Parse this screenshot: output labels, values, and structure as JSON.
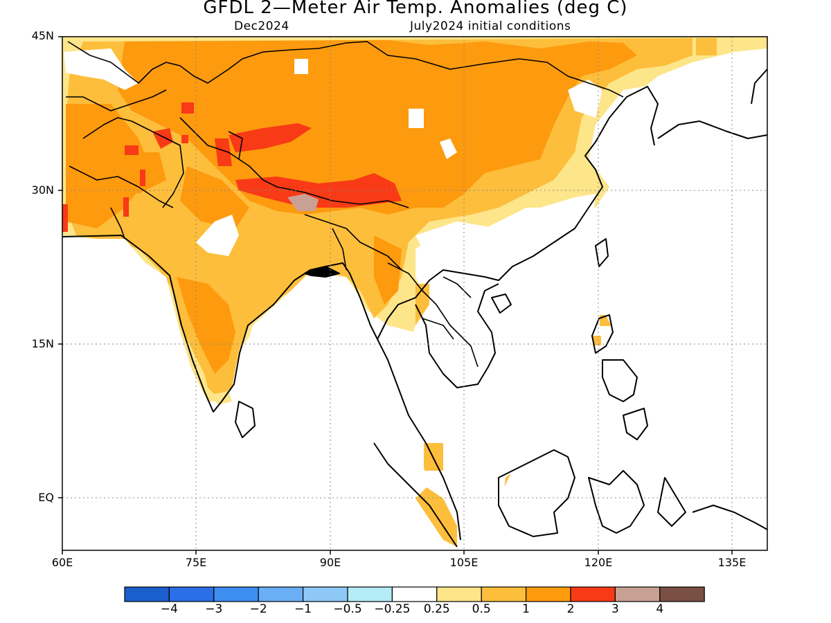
{
  "title": "GFDL 2—Meter Air Temp. Anomalies (deg C)",
  "subtitle_left": "Dec2024",
  "subtitle_right": "July2024 initial conditions",
  "lat_labels": [
    "45N",
    "30N",
    "15N",
    "EQ"
  ],
  "lon_labels": [
    "60E",
    "75E",
    "90E",
    "105E",
    "120E",
    "135E"
  ],
  "colorbar": {
    "colors": [
      "#1a5fcc",
      "#2a6fe6",
      "#3d8ef0",
      "#6aaef5",
      "#8ec8f7",
      "#b3ecf7",
      "#ffffff",
      "#fde58a",
      "#fdbe3c",
      "#fd9a0e",
      "#f83a16",
      "#c9a094",
      "#7a5044"
    ],
    "labels": [
      "−4",
      "−3",
      "−2",
      "−1",
      "−0.5",
      "−0.25",
      "0.25",
      "0.5",
      "1",
      "2",
      "3",
      "4"
    ]
  },
  "palette": {
    "light_yellow": "#fde58a",
    "yellow_orange": "#fdbe3c",
    "orange": "#fd9a0e",
    "red": "#f83a16",
    "pink_brown": "#c9a094",
    "light_blue": "#b3ecf7"
  }
}
